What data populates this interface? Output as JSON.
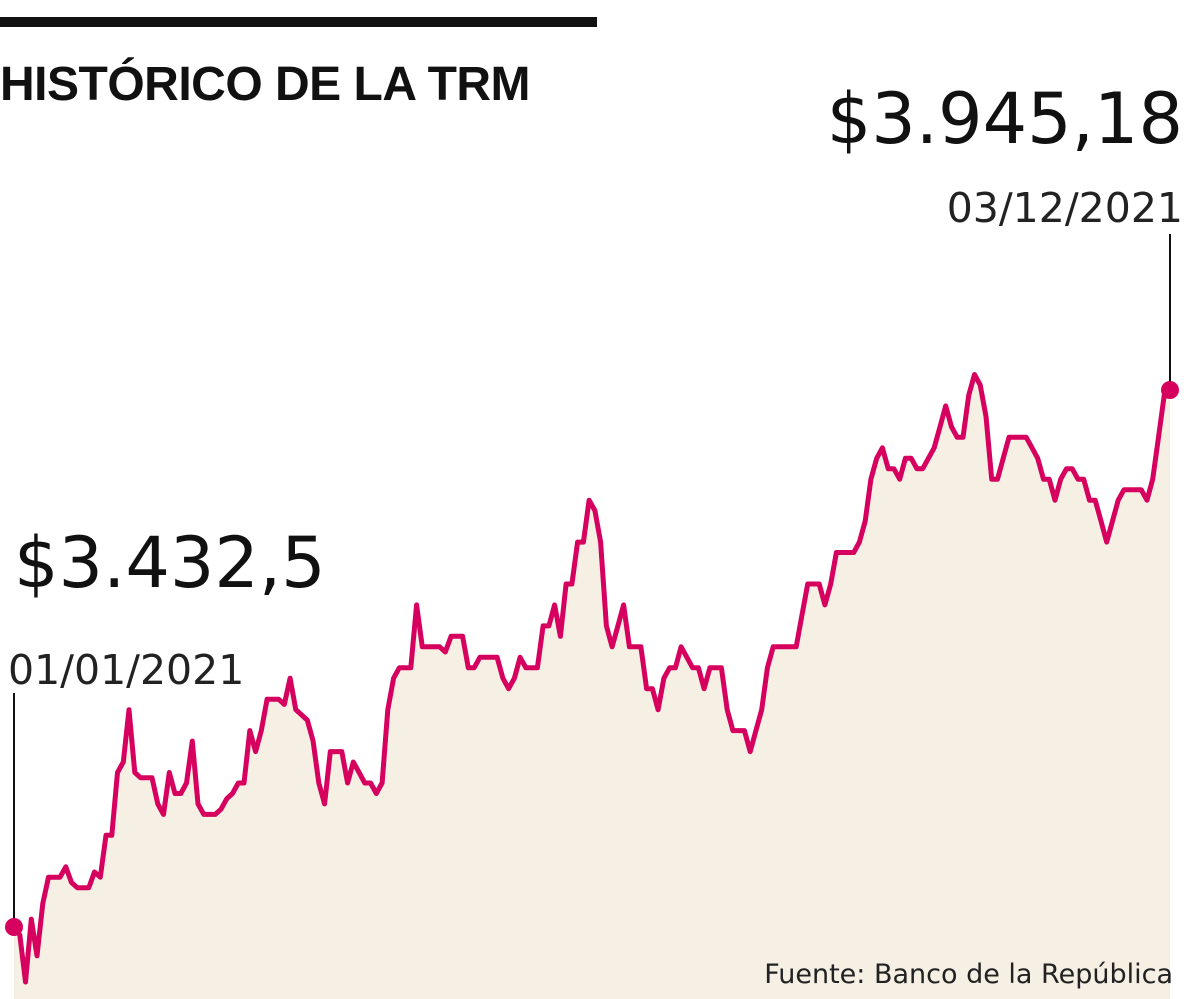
{
  "title": "HISTÓRICO DE LA TRM",
  "source": "Fuente: Banco de la República",
  "colors": {
    "line": "#d6005f",
    "area": "#f5efe4",
    "text": "#111111"
  },
  "chart_data": {
    "type": "area",
    "title": "HISTÓRICO DE LA TRM",
    "xlabel": "",
    "ylabel": "",
    "x_range": [
      "01/01/2021",
      "03/12/2021"
    ],
    "start": {
      "date": "01/01/2021",
      "label": "$3.432,5",
      "value": 3432.5
    },
    "end": {
      "date": "03/12/2021",
      "label": "$3.945,18",
      "value": 3945.18
    },
    "grid": false,
    "legend": "none",
    "series": [
      {
        "values": [
          3432.5,
          3425,
          3380,
          3440,
          3405,
          3455,
          3480,
          3480,
          3480,
          3490,
          3475,
          3470,
          3470,
          3470,
          3485,
          3480,
          3520,
          3520,
          3580,
          3590,
          3640,
          3580,
          3575,
          3575,
          3575,
          3550,
          3540,
          3580,
          3560,
          3560,
          3570,
          3610,
          3550,
          3540,
          3540,
          3540,
          3545,
          3555,
          3560,
          3570,
          3570,
          3620,
          3600,
          3620,
          3650,
          3650,
          3650,
          3645,
          3670,
          3640,
          3635,
          3630,
          3610,
          3570,
          3550,
          3600,
          3600,
          3600,
          3570,
          3590,
          3580,
          3570,
          3570,
          3560,
          3570,
          3640,
          3670,
          3680,
          3680,
          3680,
          3740,
          3700,
          3700,
          3700,
          3700,
          3695,
          3710,
          3710,
          3710,
          3680,
          3680,
          3690,
          3690,
          3690,
          3690,
          3670,
          3660,
          3670,
          3690,
          3680,
          3680,
          3680,
          3720,
          3720,
          3740,
          3710,
          3760,
          3760,
          3800,
          3800,
          3840,
          3830,
          3800,
          3720,
          3700,
          3720,
          3740,
          3700,
          3700,
          3700,
          3660,
          3660,
          3640,
          3670,
          3680,
          3680,
          3700,
          3690,
          3680,
          3680,
          3660,
          3680,
          3680,
          3680,
          3640,
          3620,
          3620,
          3620,
          3600,
          3620,
          3640,
          3680,
          3700,
          3700,
          3700,
          3700,
          3700,
          3730,
          3760,
          3760,
          3760,
          3740,
          3760,
          3790,
          3790,
          3790,
          3790,
          3800,
          3820,
          3860,
          3880,
          3890,
          3870,
          3870,
          3860,
          3880,
          3880,
          3870,
          3870,
          3880,
          3890,
          3910,
          3930,
          3910,
          3900,
          3900,
          3940,
          3960,
          3950,
          3920,
          3860,
          3860,
          3880,
          3900,
          3900,
          3900,
          3900,
          3890,
          3880,
          3860,
          3860,
          3840,
          3860,
          3870,
          3870,
          3860,
          3860,
          3840,
          3840,
          3820,
          3800,
          3820,
          3840,
          3850,
          3850,
          3850,
          3850,
          3840,
          3860,
          3900,
          3940,
          3945.18
        ]
      }
    ]
  }
}
